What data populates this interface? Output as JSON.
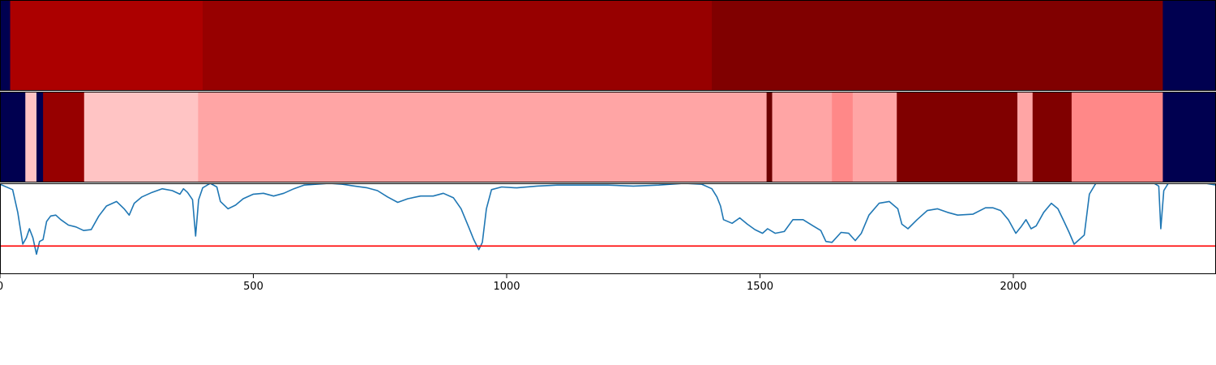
{
  "chart_data": {
    "type": "heatmap",
    "xlim": [
      0,
      2400
    ],
    "colors": {
      "navy": "#000050",
      "red_1": "#ac0000",
      "red_2": "#970000",
      "dark_red": "#800000",
      "darkest_red": "#6c0000",
      "pink_light": "#ffc4c4",
      "pink_mid": "#ffa5a5",
      "pink_salmon": "#ff8888",
      "trace": "#1f77b4",
      "threshold": "#ff0000",
      "frame": "#000000"
    },
    "track_1": [
      {
        "start": 0,
        "end": 20,
        "color": "navy"
      },
      {
        "start": 20,
        "end": 400,
        "color": "red_1"
      },
      {
        "start": 400,
        "end": 1405,
        "color": "red_2"
      },
      {
        "start": 1405,
        "end": 2295,
        "color": "dark_red"
      },
      {
        "start": 2295,
        "end": 2400,
        "color": "navy"
      }
    ],
    "track_2": [
      {
        "start": 0,
        "end": 50,
        "color": "navy"
      },
      {
        "start": 50,
        "end": 72,
        "color": "pink_light"
      },
      {
        "start": 72,
        "end": 85,
        "color": "navy"
      },
      {
        "start": 85,
        "end": 166,
        "color": "red_2"
      },
      {
        "start": 166,
        "end": 391,
        "color": "pink_light"
      },
      {
        "start": 391,
        "end": 1513,
        "color": "pink_mid"
      },
      {
        "start": 1513,
        "end": 1524,
        "color": "darkest_red"
      },
      {
        "start": 1524,
        "end": 1642,
        "color": "pink_mid"
      },
      {
        "start": 1642,
        "end": 1683,
        "color": "pink_salmon"
      },
      {
        "start": 1683,
        "end": 1770,
        "color": "pink_mid"
      },
      {
        "start": 1770,
        "end": 2008,
        "color": "dark_red"
      },
      {
        "start": 2008,
        "end": 2038,
        "color": "pink_mid"
      },
      {
        "start": 2038,
        "end": 2115,
        "color": "dark_red"
      },
      {
        "start": 2115,
        "end": 2295,
        "color": "pink_salmon"
      },
      {
        "start": 2295,
        "end": 2400,
        "color": "navy"
      }
    ],
    "line_series": {
      "ylim": [
        0,
        1
      ],
      "threshold": 0.31,
      "points": [
        [
          0,
          0.99
        ],
        [
          25,
          0.93
        ],
        [
          35,
          0.68
        ],
        [
          45,
          0.33
        ],
        [
          52,
          0.4
        ],
        [
          58,
          0.5
        ],
        [
          65,
          0.4
        ],
        [
          72,
          0.22
        ],
        [
          78,
          0.36
        ],
        [
          85,
          0.38
        ],
        [
          92,
          0.58
        ],
        [
          100,
          0.64
        ],
        [
          110,
          0.65
        ],
        [
          120,
          0.6
        ],
        [
          135,
          0.54
        ],
        [
          150,
          0.52
        ],
        [
          165,
          0.48
        ],
        [
          180,
          0.49
        ],
        [
          195,
          0.64
        ],
        [
          210,
          0.75
        ],
        [
          230,
          0.8
        ],
        [
          245,
          0.72
        ],
        [
          255,
          0.65
        ],
        [
          265,
          0.78
        ],
        [
          280,
          0.85
        ],
        [
          300,
          0.9
        ],
        [
          320,
          0.94
        ],
        [
          340,
          0.92
        ],
        [
          355,
          0.88
        ],
        [
          362,
          0.94
        ],
        [
          370,
          0.9
        ],
        [
          380,
          0.82
        ],
        [
          386,
          0.42
        ],
        [
          392,
          0.82
        ],
        [
          400,
          0.95
        ],
        [
          415,
          1.0
        ],
        [
          428,
          0.96
        ],
        [
          435,
          0.8
        ],
        [
          450,
          0.72
        ],
        [
          465,
          0.76
        ],
        [
          480,
          0.83
        ],
        [
          500,
          0.88
        ],
        [
          520,
          0.89
        ],
        [
          540,
          0.86
        ],
        [
          560,
          0.89
        ],
        [
          580,
          0.94
        ],
        [
          600,
          0.98
        ],
        [
          625,
          0.99
        ],
        [
          650,
          1.0
        ],
        [
          675,
          0.99
        ],
        [
          700,
          0.97
        ],
        [
          725,
          0.95
        ],
        [
          745,
          0.92
        ],
        [
          765,
          0.85
        ],
        [
          785,
          0.79
        ],
        [
          805,
          0.83
        ],
        [
          830,
          0.86
        ],
        [
          855,
          0.86
        ],
        [
          875,
          0.89
        ],
        [
          895,
          0.84
        ],
        [
          910,
          0.72
        ],
        [
          925,
          0.52
        ],
        [
          935,
          0.38
        ],
        [
          945,
          0.27
        ],
        [
          952,
          0.35
        ],
        [
          960,
          0.72
        ],
        [
          970,
          0.93
        ],
        [
          990,
          0.96
        ],
        [
          1020,
          0.95
        ],
        [
          1060,
          0.97
        ],
        [
          1100,
          0.98
        ],
        [
          1150,
          0.98
        ],
        [
          1200,
          0.98
        ],
        [
          1250,
          0.97
        ],
        [
          1300,
          0.98
        ],
        [
          1350,
          1.0
        ],
        [
          1385,
          0.99
        ],
        [
          1405,
          0.94
        ],
        [
          1415,
          0.85
        ],
        [
          1422,
          0.75
        ],
        [
          1428,
          0.6
        ],
        [
          1445,
          0.56
        ],
        [
          1460,
          0.62
        ],
        [
          1475,
          0.55
        ],
        [
          1490,
          0.49
        ],
        [
          1505,
          0.45
        ],
        [
          1515,
          0.5
        ],
        [
          1530,
          0.45
        ],
        [
          1548,
          0.47
        ],
        [
          1565,
          0.6
        ],
        [
          1585,
          0.6
        ],
        [
          1605,
          0.53
        ],
        [
          1620,
          0.48
        ],
        [
          1630,
          0.36
        ],
        [
          1642,
          0.35
        ],
        [
          1660,
          0.46
        ],
        [
          1675,
          0.45
        ],
        [
          1688,
          0.37
        ],
        [
          1700,
          0.45
        ],
        [
          1715,
          0.65
        ],
        [
          1735,
          0.78
        ],
        [
          1755,
          0.8
        ],
        [
          1772,
          0.72
        ],
        [
          1780,
          0.55
        ],
        [
          1792,
          0.5
        ],
        [
          1810,
          0.6
        ],
        [
          1830,
          0.7
        ],
        [
          1850,
          0.72
        ],
        [
          1870,
          0.68
        ],
        [
          1890,
          0.65
        ],
        [
          1920,
          0.66
        ],
        [
          1945,
          0.73
        ],
        [
          1960,
          0.73
        ],
        [
          1975,
          0.7
        ],
        [
          1990,
          0.6
        ],
        [
          2005,
          0.45
        ],
        [
          2015,
          0.52
        ],
        [
          2025,
          0.6
        ],
        [
          2035,
          0.5
        ],
        [
          2045,
          0.53
        ],
        [
          2060,
          0.68
        ],
        [
          2075,
          0.78
        ],
        [
          2088,
          0.72
        ],
        [
          2100,
          0.58
        ],
        [
          2110,
          0.46
        ],
        [
          2120,
          0.33
        ],
        [
          2130,
          0.38
        ],
        [
          2140,
          0.43
        ],
        [
          2150,
          0.88
        ],
        [
          2165,
          1.02
        ],
        [
          2185,
          1.02
        ],
        [
          2210,
          1.01
        ],
        [
          2240,
          1.01
        ],
        [
          2275,
          1.01
        ],
        [
          2287,
          0.97
        ],
        [
          2291,
          0.5
        ],
        [
          2297,
          0.92
        ],
        [
          2308,
          1.02
        ],
        [
          2340,
          1.01
        ],
        [
          2370,
          1.01
        ],
        [
          2400,
          0.98
        ]
      ]
    },
    "x_ticks": [
      {
        "value": 0,
        "label": "0"
      },
      {
        "value": 500,
        "label": "500"
      },
      {
        "value": 1000,
        "label": "1000"
      },
      {
        "value": 1500,
        "label": "1500"
      },
      {
        "value": 2000,
        "label": "2000"
      }
    ]
  }
}
